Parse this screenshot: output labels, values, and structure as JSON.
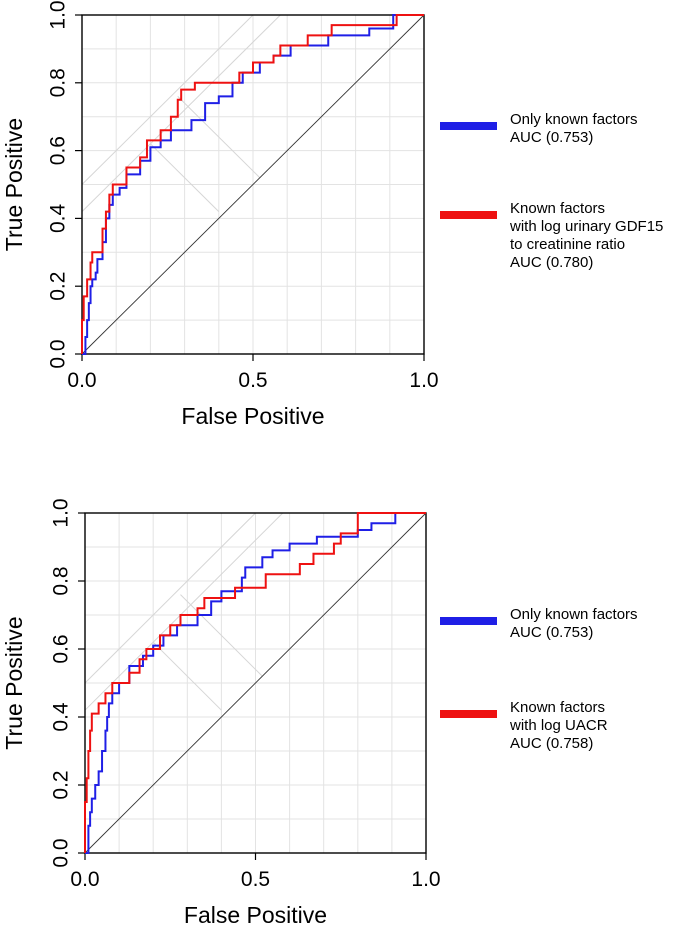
{
  "chart_data": [
    {
      "type": "line",
      "title": "",
      "xlabel": "False Positive",
      "ylabel": "True Positive",
      "xlim": [
        0,
        1
      ],
      "ylim": [
        0,
        1
      ],
      "x_ticks": [
        "0.0",
        "0.5",
        "1.0"
      ],
      "y_ticks": [
        "0.0",
        "0.2",
        "0.4",
        "0.6",
        "0.8",
        "1.0"
      ],
      "grid": true,
      "legend_position": "right",
      "series": [
        {
          "name": "Only known factors",
          "legend_lines": [
            "Only known factors",
            "AUC (0.753)"
          ],
          "auc": 0.753,
          "color": "#1f1fe6",
          "points": [
            [
              0,
              0
            ],
            [
              0.01,
              0
            ],
            [
              0.01,
              0.05
            ],
            [
              0.015,
              0.05
            ],
            [
              0.015,
              0.1
            ],
            [
              0.02,
              0.1
            ],
            [
              0.02,
              0.15
            ],
            [
              0.025,
              0.15
            ],
            [
              0.025,
              0.2
            ],
            [
              0.03,
              0.2
            ],
            [
              0.03,
              0.22
            ],
            [
              0.04,
              0.22
            ],
            [
              0.04,
              0.24
            ],
            [
              0.045,
              0.24
            ],
            [
              0.045,
              0.28
            ],
            [
              0.06,
              0.28
            ],
            [
              0.06,
              0.33
            ],
            [
              0.07,
              0.33
            ],
            [
              0.07,
              0.4
            ],
            [
              0.08,
              0.4
            ],
            [
              0.08,
              0.44
            ],
            [
              0.09,
              0.44
            ],
            [
              0.09,
              0.47
            ],
            [
              0.11,
              0.47
            ],
            [
              0.11,
              0.49
            ],
            [
              0.13,
              0.49
            ],
            [
              0.13,
              0.53
            ],
            [
              0.17,
              0.53
            ],
            [
              0.17,
              0.57
            ],
            [
              0.2,
              0.57
            ],
            [
              0.2,
              0.61
            ],
            [
              0.23,
              0.61
            ],
            [
              0.23,
              0.63
            ],
            [
              0.26,
              0.63
            ],
            [
              0.26,
              0.66
            ],
            [
              0.32,
              0.66
            ],
            [
              0.32,
              0.69
            ],
            [
              0.36,
              0.69
            ],
            [
              0.36,
              0.74
            ],
            [
              0.4,
              0.74
            ],
            [
              0.4,
              0.76
            ],
            [
              0.44,
              0.76
            ],
            [
              0.44,
              0.8
            ],
            [
              0.47,
              0.8
            ],
            [
              0.47,
              0.83
            ],
            [
              0.52,
              0.83
            ],
            [
              0.52,
              0.86
            ],
            [
              0.56,
              0.86
            ],
            [
              0.56,
              0.88
            ],
            [
              0.61,
              0.88
            ],
            [
              0.61,
              0.91
            ],
            [
              0.72,
              0.91
            ],
            [
              0.72,
              0.94
            ],
            [
              0.84,
              0.94
            ],
            [
              0.84,
              0.96
            ],
            [
              0.91,
              0.96
            ],
            [
              0.91,
              1
            ],
            [
              1,
              1
            ]
          ]
        },
        {
          "name": "Known factors with log urinary GDF15 to creatinine ratio",
          "legend_lines": [
            "Known factors",
            "with log urinary GDF15",
            "to creatinine ratio",
            "AUC (0.780)"
          ],
          "auc": 0.78,
          "color": "#ee1111",
          "points": [
            [
              0,
              0
            ],
            [
              0,
              0.1
            ],
            [
              0.005,
              0.1
            ],
            [
              0.005,
              0.17
            ],
            [
              0.015,
              0.17
            ],
            [
              0.015,
              0.22
            ],
            [
              0.025,
              0.22
            ],
            [
              0.025,
              0.27
            ],
            [
              0.03,
              0.27
            ],
            [
              0.03,
              0.3
            ],
            [
              0.06,
              0.3
            ],
            [
              0.06,
              0.37
            ],
            [
              0.07,
              0.37
            ],
            [
              0.07,
              0.42
            ],
            [
              0.08,
              0.42
            ],
            [
              0.08,
              0.47
            ],
            [
              0.09,
              0.47
            ],
            [
              0.09,
              0.5
            ],
            [
              0.13,
              0.5
            ],
            [
              0.13,
              0.55
            ],
            [
              0.17,
              0.55
            ],
            [
              0.17,
              0.58
            ],
            [
              0.19,
              0.58
            ],
            [
              0.19,
              0.63
            ],
            [
              0.23,
              0.63
            ],
            [
              0.23,
              0.66
            ],
            [
              0.26,
              0.66
            ],
            [
              0.26,
              0.7
            ],
            [
              0.28,
              0.7
            ],
            [
              0.28,
              0.75
            ],
            [
              0.29,
              0.75
            ],
            [
              0.29,
              0.78
            ],
            [
              0.33,
              0.78
            ],
            [
              0.33,
              0.8
            ],
            [
              0.46,
              0.8
            ],
            [
              0.46,
              0.83
            ],
            [
              0.5,
              0.83
            ],
            [
              0.5,
              0.86
            ],
            [
              0.56,
              0.86
            ],
            [
              0.56,
              0.88
            ],
            [
              0.58,
              0.88
            ],
            [
              0.58,
              0.91
            ],
            [
              0.66,
              0.91
            ],
            [
              0.66,
              0.94
            ],
            [
              0.73,
              0.94
            ],
            [
              0.73,
              0.97
            ],
            [
              0.92,
              0.97
            ],
            [
              0.92,
              1
            ],
            [
              1,
              1
            ]
          ]
        }
      ]
    },
    {
      "type": "line",
      "title": "",
      "xlabel": "False Positive",
      "ylabel": "True Positive",
      "xlim": [
        0,
        1
      ],
      "ylim": [
        0,
        1
      ],
      "x_ticks": [
        "0.0",
        "0.5",
        "1.0"
      ],
      "y_ticks": [
        "0.0",
        "0.2",
        "0.4",
        "0.6",
        "0.8",
        "1.0"
      ],
      "grid": true,
      "legend_position": "right",
      "series": [
        {
          "name": "Only known factors",
          "legend_lines": [
            "Only known factors",
            "AUC (0.753)"
          ],
          "auc": 0.753,
          "color": "#1f1fe6",
          "points": [
            [
              0,
              0
            ],
            [
              0.01,
              0
            ],
            [
              0.01,
              0.08
            ],
            [
              0.015,
              0.08
            ],
            [
              0.015,
              0.12
            ],
            [
              0.02,
              0.12
            ],
            [
              0.02,
              0.16
            ],
            [
              0.03,
              0.16
            ],
            [
              0.03,
              0.2
            ],
            [
              0.04,
              0.2
            ],
            [
              0.04,
              0.24
            ],
            [
              0.05,
              0.24
            ],
            [
              0.05,
              0.3
            ],
            [
              0.06,
              0.3
            ],
            [
              0.06,
              0.36
            ],
            [
              0.065,
              0.36
            ],
            [
              0.065,
              0.4
            ],
            [
              0.07,
              0.4
            ],
            [
              0.07,
              0.44
            ],
            [
              0.08,
              0.44
            ],
            [
              0.08,
              0.47
            ],
            [
              0.1,
              0.47
            ],
            [
              0.1,
              0.5
            ],
            [
              0.13,
              0.5
            ],
            [
              0.13,
              0.55
            ],
            [
              0.17,
              0.55
            ],
            [
              0.17,
              0.58
            ],
            [
              0.2,
              0.58
            ],
            [
              0.2,
              0.61
            ],
            [
              0.23,
              0.61
            ],
            [
              0.23,
              0.64
            ],
            [
              0.27,
              0.64
            ],
            [
              0.27,
              0.67
            ],
            [
              0.33,
              0.67
            ],
            [
              0.33,
              0.7
            ],
            [
              0.37,
              0.7
            ],
            [
              0.37,
              0.74
            ],
            [
              0.4,
              0.74
            ],
            [
              0.4,
              0.77
            ],
            [
              0.46,
              0.77
            ],
            [
              0.46,
              0.81
            ],
            [
              0.47,
              0.81
            ],
            [
              0.47,
              0.84
            ],
            [
              0.52,
              0.84
            ],
            [
              0.52,
              0.87
            ],
            [
              0.55,
              0.87
            ],
            [
              0.55,
              0.89
            ],
            [
              0.6,
              0.89
            ],
            [
              0.6,
              0.91
            ],
            [
              0.68,
              0.91
            ],
            [
              0.68,
              0.93
            ],
            [
              0.8,
              0.93
            ],
            [
              0.8,
              0.95
            ],
            [
              0.84,
              0.95
            ],
            [
              0.84,
              0.97
            ],
            [
              0.91,
              0.97
            ],
            [
              0.91,
              1
            ],
            [
              1,
              1
            ]
          ]
        },
        {
          "name": "Known factors with log UACR",
          "legend_lines": [
            "Known factors",
            "with log UACR",
            "AUC (0.758)"
          ],
          "auc": 0.758,
          "color": "#ee1111",
          "points": [
            [
              0,
              0
            ],
            [
              0,
              0.15
            ],
            [
              0.005,
              0.15
            ],
            [
              0.005,
              0.22
            ],
            [
              0.01,
              0.22
            ],
            [
              0.01,
              0.3
            ],
            [
              0.015,
              0.3
            ],
            [
              0.015,
              0.36
            ],
            [
              0.02,
              0.36
            ],
            [
              0.02,
              0.41
            ],
            [
              0.04,
              0.41
            ],
            [
              0.04,
              0.44
            ],
            [
              0.06,
              0.44
            ],
            [
              0.06,
              0.47
            ],
            [
              0.08,
              0.47
            ],
            [
              0.08,
              0.5
            ],
            [
              0.13,
              0.5
            ],
            [
              0.13,
              0.53
            ],
            [
              0.16,
              0.53
            ],
            [
              0.16,
              0.57
            ],
            [
              0.18,
              0.57
            ],
            [
              0.18,
              0.6
            ],
            [
              0.22,
              0.6
            ],
            [
              0.22,
              0.64
            ],
            [
              0.25,
              0.64
            ],
            [
              0.25,
              0.67
            ],
            [
              0.28,
              0.67
            ],
            [
              0.28,
              0.7
            ],
            [
              0.33,
              0.7
            ],
            [
              0.33,
              0.72
            ],
            [
              0.35,
              0.72
            ],
            [
              0.35,
              0.75
            ],
            [
              0.44,
              0.75
            ],
            [
              0.44,
              0.78
            ],
            [
              0.53,
              0.78
            ],
            [
              0.53,
              0.82
            ],
            [
              0.63,
              0.82
            ],
            [
              0.63,
              0.85
            ],
            [
              0.67,
              0.85
            ],
            [
              0.67,
              0.88
            ],
            [
              0.73,
              0.88
            ],
            [
              0.73,
              0.91
            ],
            [
              0.75,
              0.91
            ],
            [
              0.75,
              0.94
            ],
            [
              0.8,
              0.94
            ],
            [
              0.8,
              1
            ],
            [
              1,
              1
            ]
          ]
        }
      ]
    }
  ]
}
